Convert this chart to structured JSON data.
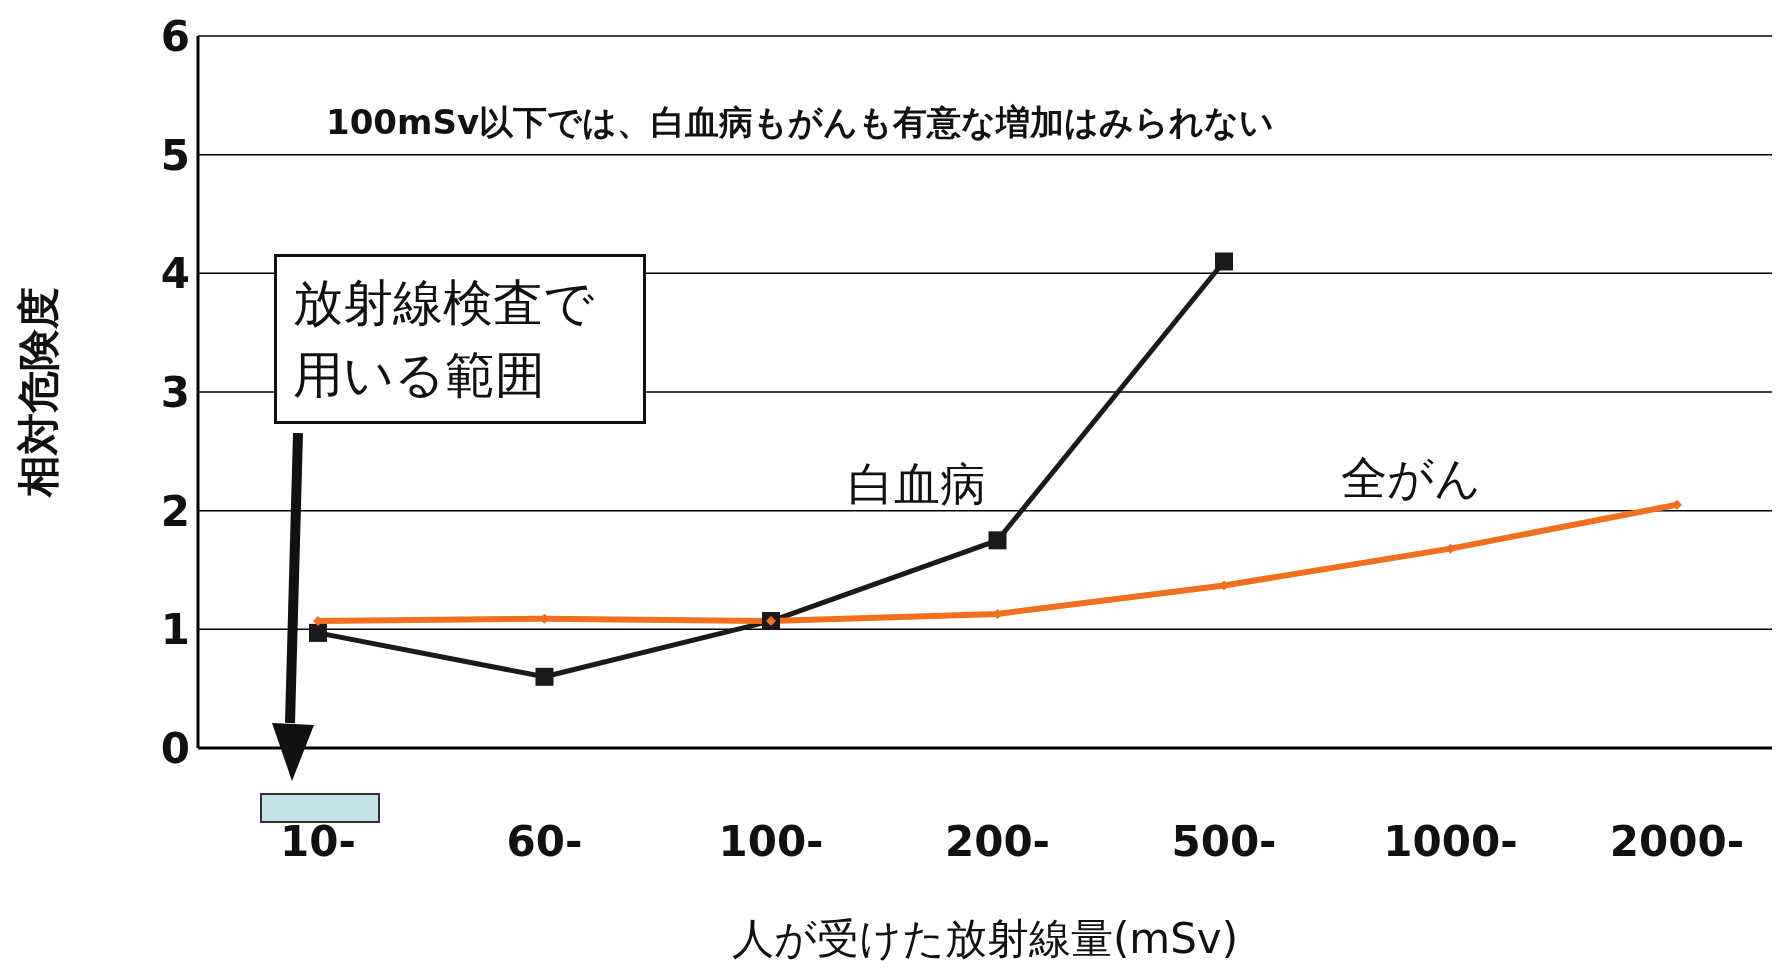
{
  "chart_data": {
    "type": "line",
    "xlabel": "人が受けた放射線量(mSv)",
    "ylabel": "相対危険度",
    "categories": [
      "10-",
      "60-",
      "100-",
      "200-",
      "500-",
      "1000-",
      "2000-"
    ],
    "series": [
      {
        "name": "白血病",
        "color": "#1a1a1a",
        "marker": "square",
        "values": [
          0.97,
          0.6,
          1.07,
          1.75,
          4.1,
          null,
          null
        ]
      },
      {
        "name": "全がん",
        "color": "#f07020",
        "marker": "diamond",
        "values": [
          1.07,
          1.09,
          1.07,
          1.13,
          1.37,
          1.68,
          2.05
        ]
      }
    ],
    "ylim": [
      0,
      6
    ],
    "yticks": [
      0,
      1,
      2,
      3,
      4,
      5,
      6
    ],
    "grid": "y",
    "legend": false,
    "annotations": [
      "100mSv以下では、白血病もがんも有意な増加はみられない",
      "放射線検査で用いる範囲"
    ]
  }
}
